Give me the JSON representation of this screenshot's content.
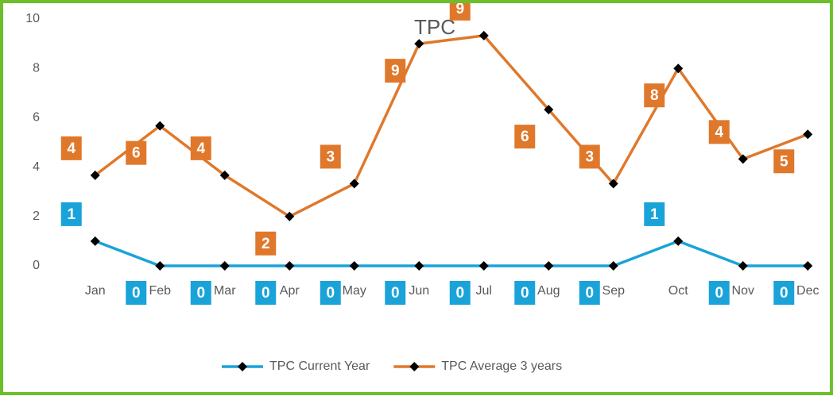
{
  "chart_data": {
    "type": "line",
    "title": "TPC",
    "categories": [
      "Jan",
      "Feb",
      "Mar",
      "Apr",
      "May",
      "Jun",
      "Jul",
      "Aug",
      "Sep",
      "Oct",
      "Nov",
      "Dec"
    ],
    "series": [
      {
        "name": "TPC Current Year",
        "color": "#1aa3d9",
        "values": [
          1,
          0,
          0,
          0,
          0,
          0,
          0,
          0,
          0,
          1,
          0,
          0
        ]
      },
      {
        "name": "TPC Average 3 years",
        "color": "#e0782b",
        "values": [
          3.67,
          5.67,
          3.67,
          2,
          3.33,
          9,
          9.33,
          6.33,
          3.33,
          8,
          4.33,
          5.33
        ],
        "value_labels": [
          "4",
          "6",
          "4",
          "2",
          "3",
          "9",
          "9",
          "6",
          "3",
          "8",
          "4",
          "5"
        ]
      }
    ],
    "ylim": [
      0,
      10
    ],
    "yticks": [
      0,
      2,
      4,
      6,
      8,
      10
    ],
    "grid": false,
    "legend": "bottom"
  }
}
